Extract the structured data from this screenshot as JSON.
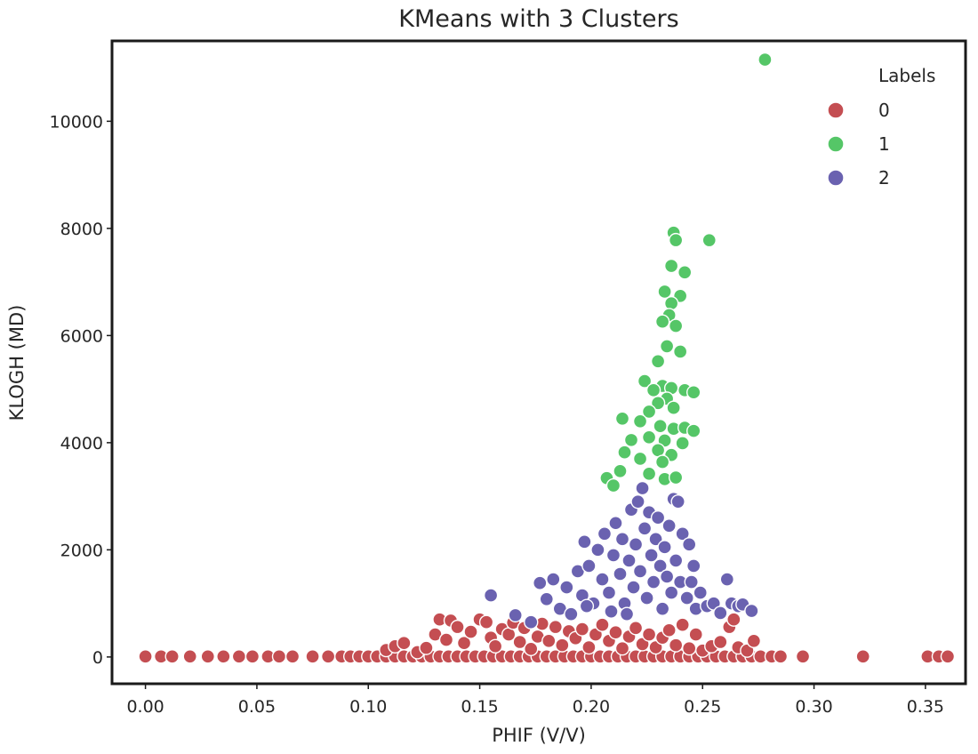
{
  "chart_data": {
    "type": "scatter",
    "title": "KMeans with 3 Clusters",
    "xlabel": "PHIF (V/V)",
    "ylabel": "KLOGH (MD)",
    "xlim": [
      -0.015,
      0.368
    ],
    "ylim": [
      -500,
      11500
    ],
    "x_ticks": [
      0.0,
      0.05,
      0.1,
      0.15,
      0.2,
      0.25,
      0.3,
      0.35
    ],
    "x_tick_labels": [
      "0.00",
      "0.05",
      "0.10",
      "0.15",
      "0.20",
      "0.25",
      "0.30",
      "0.35"
    ],
    "y_ticks": [
      0,
      2000,
      4000,
      6000,
      8000,
      10000
    ],
    "y_tick_labels": [
      "0",
      "2000",
      "4000",
      "6000",
      "8000",
      "10000"
    ],
    "grid": false,
    "legend": {
      "title": "Labels",
      "position": "top-right"
    },
    "colors": {
      "0": "#c44e52",
      "1": "#55c667",
      "2": "#6a62b0"
    },
    "series": [
      {
        "name": "0",
        "points": [
          [
            0.0,
            10
          ],
          [
            0.007,
            10
          ],
          [
            0.012,
            10
          ],
          [
            0.02,
            10
          ],
          [
            0.028,
            10
          ],
          [
            0.035,
            10
          ],
          [
            0.042,
            10
          ],
          [
            0.048,
            10
          ],
          [
            0.055,
            10
          ],
          [
            0.06,
            10
          ],
          [
            0.066,
            10
          ],
          [
            0.075,
            10
          ],
          [
            0.082,
            10
          ],
          [
            0.088,
            10
          ],
          [
            0.092,
            10
          ],
          [
            0.096,
            10
          ],
          [
            0.1,
            10
          ],
          [
            0.104,
            10
          ],
          [
            0.108,
            10
          ],
          [
            0.112,
            10
          ],
          [
            0.116,
            10
          ],
          [
            0.12,
            10
          ],
          [
            0.124,
            10
          ],
          [
            0.128,
            10
          ],
          [
            0.132,
            10
          ],
          [
            0.136,
            10
          ],
          [
            0.14,
            10
          ],
          [
            0.144,
            10
          ],
          [
            0.148,
            10
          ],
          [
            0.152,
            10
          ],
          [
            0.156,
            10
          ],
          [
            0.16,
            10
          ],
          [
            0.164,
            10
          ],
          [
            0.168,
            10
          ],
          [
            0.172,
            10
          ],
          [
            0.176,
            10
          ],
          [
            0.18,
            10
          ],
          [
            0.184,
            10
          ],
          [
            0.188,
            10
          ],
          [
            0.192,
            10
          ],
          [
            0.196,
            10
          ],
          [
            0.2,
            10
          ],
          [
            0.204,
            10
          ],
          [
            0.208,
            10
          ],
          [
            0.212,
            10
          ],
          [
            0.216,
            10
          ],
          [
            0.22,
            10
          ],
          [
            0.224,
            10
          ],
          [
            0.228,
            10
          ],
          [
            0.232,
            10
          ],
          [
            0.236,
            10
          ],
          [
            0.24,
            10
          ],
          [
            0.244,
            10
          ],
          [
            0.248,
            10
          ],
          [
            0.252,
            10
          ],
          [
            0.256,
            10
          ],
          [
            0.26,
            10
          ],
          [
            0.264,
            10
          ],
          [
            0.268,
            10
          ],
          [
            0.272,
            10
          ],
          [
            0.276,
            10
          ],
          [
            0.281,
            10
          ],
          [
            0.285,
            10
          ],
          [
            0.295,
            10
          ],
          [
            0.322,
            10
          ],
          [
            0.351,
            10
          ],
          [
            0.356,
            10
          ],
          [
            0.36,
            10
          ],
          [
            0.108,
            130
          ],
          [
            0.112,
            200
          ],
          [
            0.116,
            260
          ],
          [
            0.122,
            90
          ],
          [
            0.126,
            170
          ],
          [
            0.13,
            420
          ],
          [
            0.132,
            700
          ],
          [
            0.135,
            320
          ],
          [
            0.137,
            680
          ],
          [
            0.14,
            560
          ],
          [
            0.143,
            260
          ],
          [
            0.146,
            470
          ],
          [
            0.15,
            700
          ],
          [
            0.153,
            650
          ],
          [
            0.155,
            360
          ],
          [
            0.157,
            200
          ],
          [
            0.16,
            520
          ],
          [
            0.163,
            420
          ],
          [
            0.165,
            640
          ],
          [
            0.168,
            280
          ],
          [
            0.17,
            540
          ],
          [
            0.173,
            150
          ],
          [
            0.176,
            380
          ],
          [
            0.178,
            620
          ],
          [
            0.181,
            300
          ],
          [
            0.184,
            560
          ],
          [
            0.187,
            220
          ],
          [
            0.19,
            480
          ],
          [
            0.193,
            350
          ],
          [
            0.196,
            520
          ],
          [
            0.199,
            180
          ],
          [
            0.202,
            420
          ],
          [
            0.205,
            600
          ],
          [
            0.208,
            300
          ],
          [
            0.211,
            460
          ],
          [
            0.214,
            160
          ],
          [
            0.217,
            380
          ],
          [
            0.22,
            540
          ],
          [
            0.223,
            240
          ],
          [
            0.226,
            420
          ],
          [
            0.229,
            180
          ],
          [
            0.232,
            360
          ],
          [
            0.235,
            500
          ],
          [
            0.238,
            220
          ],
          [
            0.241,
            600
          ],
          [
            0.244,
            160
          ],
          [
            0.247,
            420
          ],
          [
            0.25,
            120
          ],
          [
            0.254,
            200
          ],
          [
            0.258,
            280
          ],
          [
            0.262,
            560
          ],
          [
            0.264,
            700
          ],
          [
            0.266,
            180
          ],
          [
            0.27,
            120
          ],
          [
            0.273,
            300
          ]
        ]
      },
      {
        "name": "1",
        "points": [
          [
            0.278,
            11150
          ],
          [
            0.237,
            7920
          ],
          [
            0.253,
            7780
          ],
          [
            0.238,
            7780
          ],
          [
            0.236,
            7300
          ],
          [
            0.242,
            7180
          ],
          [
            0.233,
            6820
          ],
          [
            0.24,
            6740
          ],
          [
            0.236,
            6600
          ],
          [
            0.235,
            6380
          ],
          [
            0.232,
            6260
          ],
          [
            0.238,
            6180
          ],
          [
            0.234,
            5800
          ],
          [
            0.24,
            5700
          ],
          [
            0.23,
            5520
          ],
          [
            0.224,
            5150
          ],
          [
            0.232,
            5060
          ],
          [
            0.236,
            5020
          ],
          [
            0.228,
            4980
          ],
          [
            0.242,
            4980
          ],
          [
            0.246,
            4940
          ],
          [
            0.234,
            4820
          ],
          [
            0.23,
            4740
          ],
          [
            0.237,
            4650
          ],
          [
            0.226,
            4580
          ],
          [
            0.214,
            4450
          ],
          [
            0.222,
            4400
          ],
          [
            0.231,
            4310
          ],
          [
            0.237,
            4260
          ],
          [
            0.242,
            4280
          ],
          [
            0.246,
            4220
          ],
          [
            0.218,
            4050
          ],
          [
            0.226,
            4100
          ],
          [
            0.233,
            4040
          ],
          [
            0.241,
            3990
          ],
          [
            0.215,
            3820
          ],
          [
            0.23,
            3860
          ],
          [
            0.236,
            3770
          ],
          [
            0.222,
            3700
          ],
          [
            0.232,
            3640
          ],
          [
            0.213,
            3470
          ],
          [
            0.226,
            3420
          ],
          [
            0.233,
            3320
          ],
          [
            0.207,
            3340
          ],
          [
            0.21,
            3200
          ],
          [
            0.238,
            3350
          ]
        ]
      },
      {
        "name": "2",
        "points": [
          [
            0.155,
            1150
          ],
          [
            0.166,
            780
          ],
          [
            0.173,
            650
          ],
          [
            0.177,
            1380
          ],
          [
            0.18,
            1080
          ],
          [
            0.183,
            1450
          ],
          [
            0.186,
            900
          ],
          [
            0.189,
            1300
          ],
          [
            0.191,
            800
          ],
          [
            0.194,
            1600
          ],
          [
            0.196,
            1150
          ],
          [
            0.197,
            2150
          ],
          [
            0.199,
            1700
          ],
          [
            0.201,
            1000
          ],
          [
            0.203,
            2000
          ],
          [
            0.205,
            1450
          ],
          [
            0.206,
            2300
          ],
          [
            0.208,
            1200
          ],
          [
            0.21,
            1900
          ],
          [
            0.211,
            2500
          ],
          [
            0.213,
            1550
          ],
          [
            0.214,
            2200
          ],
          [
            0.215,
            1000
          ],
          [
            0.217,
            1800
          ],
          [
            0.218,
            2750
          ],
          [
            0.219,
            1300
          ],
          [
            0.22,
            2100
          ],
          [
            0.221,
            2900
          ],
          [
            0.222,
            1600
          ],
          [
            0.223,
            3150
          ],
          [
            0.224,
            2400
          ],
          [
            0.225,
            1100
          ],
          [
            0.226,
            2700
          ],
          [
            0.227,
            1900
          ],
          [
            0.228,
            1400
          ],
          [
            0.229,
            2200
          ],
          [
            0.23,
            2600
          ],
          [
            0.231,
            1700
          ],
          [
            0.232,
            900
          ],
          [
            0.233,
            2050
          ],
          [
            0.234,
            1500
          ],
          [
            0.235,
            2450
          ],
          [
            0.236,
            1200
          ],
          [
            0.237,
            2950
          ],
          [
            0.238,
            1800
          ],
          [
            0.239,
            2900
          ],
          [
            0.24,
            1400
          ],
          [
            0.241,
            2300
          ],
          [
            0.243,
            1100
          ],
          [
            0.244,
            2100
          ],
          [
            0.245,
            1400
          ],
          [
            0.247,
            900
          ],
          [
            0.249,
            1200
          ],
          [
            0.252,
            950
          ],
          [
            0.255,
            1000
          ],
          [
            0.258,
            820
          ],
          [
            0.261,
            1450
          ],
          [
            0.263,
            1000
          ],
          [
            0.266,
            950
          ],
          [
            0.268,
            980
          ],
          [
            0.272,
            860
          ],
          [
            0.246,
            1700
          ],
          [
            0.216,
            800
          ],
          [
            0.209,
            850
          ],
          [
            0.198,
            950
          ]
        ]
      }
    ]
  }
}
